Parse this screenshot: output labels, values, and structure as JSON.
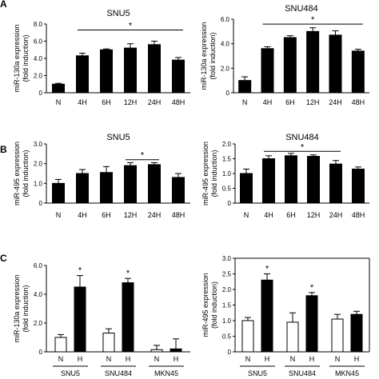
{
  "panel_letters": [
    "A",
    "B",
    "C"
  ],
  "chart_data": [
    {
      "id": "a-snu5",
      "type": "bar",
      "title": "SNU5",
      "ylabel_lines": [
        "miR-130a expression",
        "(fold induction)"
      ],
      "categories": [
        "N",
        "4H",
        "6H",
        "12H",
        "24H",
        "48H"
      ],
      "values": [
        1.0,
        4.3,
        5.0,
        5.2,
        5.6,
        3.8
      ],
      "errors": [
        0.1,
        0.3,
        0.1,
        0.5,
        0.4,
        0.3
      ],
      "fills": [
        "black",
        "black",
        "black",
        "black",
        "black",
        "black"
      ],
      "ylim": [
        0,
        8
      ],
      "yticks": [
        0,
        2,
        4,
        6,
        8
      ],
      "ytick_labels": [
        "0",
        "2.0",
        "4.0",
        "6.0",
        "8.0"
      ],
      "significance": {
        "from": 1,
        "to": 5,
        "label": "*",
        "level": 7.3
      },
      "legend": ""
    },
    {
      "id": "a-snu484",
      "type": "bar",
      "title": "SNU484",
      "ylabel_lines": [
        "miR-130a expression",
        "(fold induction)"
      ],
      "categories": [
        "N",
        "4H",
        "6H",
        "12H",
        "24H",
        "48H"
      ],
      "values": [
        1.0,
        3.6,
        4.5,
        5.0,
        4.7,
        3.4
      ],
      "errors": [
        0.3,
        0.15,
        0.15,
        0.3,
        0.35,
        0.15
      ],
      "fills": [
        "black",
        "black",
        "black",
        "black",
        "black",
        "black"
      ],
      "ylim": [
        0,
        6
      ],
      "yticks": [
        0,
        2,
        4,
        6
      ],
      "ytick_labels": [
        "0",
        "2.0",
        "4.0",
        "6.0"
      ],
      "significance": {
        "from": 1,
        "to": 5,
        "label": "*",
        "level": 5.6
      },
      "legend": ""
    },
    {
      "id": "b-snu5",
      "type": "bar",
      "title": "SNU5",
      "ylabel_lines": [
        "miR-495 expression",
        "(fold induction)"
      ],
      "categories": [
        "N",
        "4H",
        "6H",
        "12H",
        "24H",
        "48H"
      ],
      "values": [
        1.0,
        1.5,
        1.55,
        1.9,
        1.95,
        1.3
      ],
      "errors": [
        0.2,
        0.2,
        0.3,
        0.15,
        0.1,
        0.2
      ],
      "fills": [
        "black",
        "black",
        "black",
        "black",
        "black",
        "black"
      ],
      "ylim": [
        0,
        3
      ],
      "yticks": [
        0,
        1,
        2,
        3
      ],
      "ytick_labels": [
        "0",
        "1.0",
        "2.0",
        "3.0"
      ],
      "significance": {
        "from": 3,
        "to": 4,
        "label": "*",
        "level": 2.2
      },
      "legend": ""
    },
    {
      "id": "b-snu484",
      "type": "bar",
      "title": "SNU484",
      "ylabel_lines": [
        "miR-495 expression",
        "(fold induction)"
      ],
      "categories": [
        "N",
        "4H",
        "6H",
        "12H",
        "24H",
        "48H"
      ],
      "values": [
        1.0,
        1.5,
        1.6,
        1.58,
        1.32,
        1.15
      ],
      "errors": [
        0.15,
        0.1,
        0.08,
        0.05,
        0.12,
        0.07
      ],
      "fills": [
        "black",
        "black",
        "black",
        "black",
        "black",
        "black"
      ],
      "ylim": [
        0,
        2.0
      ],
      "yticks": [
        0,
        0.5,
        1.0,
        1.5,
        2.0
      ],
      "ytick_labels": [
        "0",
        "0.5",
        "1.0",
        "1.5",
        "2.0"
      ],
      "significance": {
        "from": 1,
        "to": 4,
        "label": "*",
        "level": 1.75
      },
      "legend": ""
    },
    {
      "id": "c-mir130a",
      "type": "bar",
      "title": "",
      "ylabel_lines": [
        "miR-130a expression",
        "(fold induction)"
      ],
      "categories": [
        "N",
        "H",
        "N",
        "H",
        "N",
        "H"
      ],
      "groups": [
        "SNU5",
        "SNU484",
        "MKN45"
      ],
      "values": [
        1.0,
        4.5,
        1.3,
        4.8,
        0.15,
        0.2
      ],
      "errors": [
        0.2,
        0.8,
        0.3,
        0.3,
        0.3,
        0.7
      ],
      "fills": [
        "white",
        "black",
        "white",
        "black",
        "white",
        "black"
      ],
      "ylim": [
        0,
        6
      ],
      "yticks": [
        0,
        2,
        4,
        6
      ],
      "ytick_labels": [
        "0",
        "2.0",
        "4.0",
        "6.0"
      ],
      "stars": [
        {
          "index": 1,
          "label": "*"
        },
        {
          "index": 3,
          "label": "*"
        }
      ],
      "legend": ""
    },
    {
      "id": "c-mir495",
      "type": "bar",
      "title": "",
      "ylabel_lines": [
        "miR-495 expression",
        "(fold induction)"
      ],
      "categories": [
        "N",
        "H",
        "N",
        "H",
        "N",
        "H"
      ],
      "groups": [
        "SNU5",
        "SNU484",
        "MKN45"
      ],
      "values": [
        1.0,
        2.3,
        0.95,
        1.8,
        1.05,
        1.2
      ],
      "errors": [
        0.1,
        0.2,
        0.3,
        0.1,
        0.15,
        0.1
      ],
      "fills": [
        "white",
        "black",
        "white",
        "black",
        "white",
        "black"
      ],
      "ylim": [
        0,
        3
      ],
      "yticks": [
        0,
        0.5,
        1.0,
        1.5,
        2.0,
        2.5,
        3.0
      ],
      "ytick_labels": [
        "0",
        "0.5",
        "1.0",
        "1.5",
        "2.0",
        "2.5",
        "3.0"
      ],
      "stars": [
        {
          "index": 1,
          "label": "*"
        },
        {
          "index": 3,
          "label": "*"
        }
      ],
      "legend": ""
    }
  ]
}
